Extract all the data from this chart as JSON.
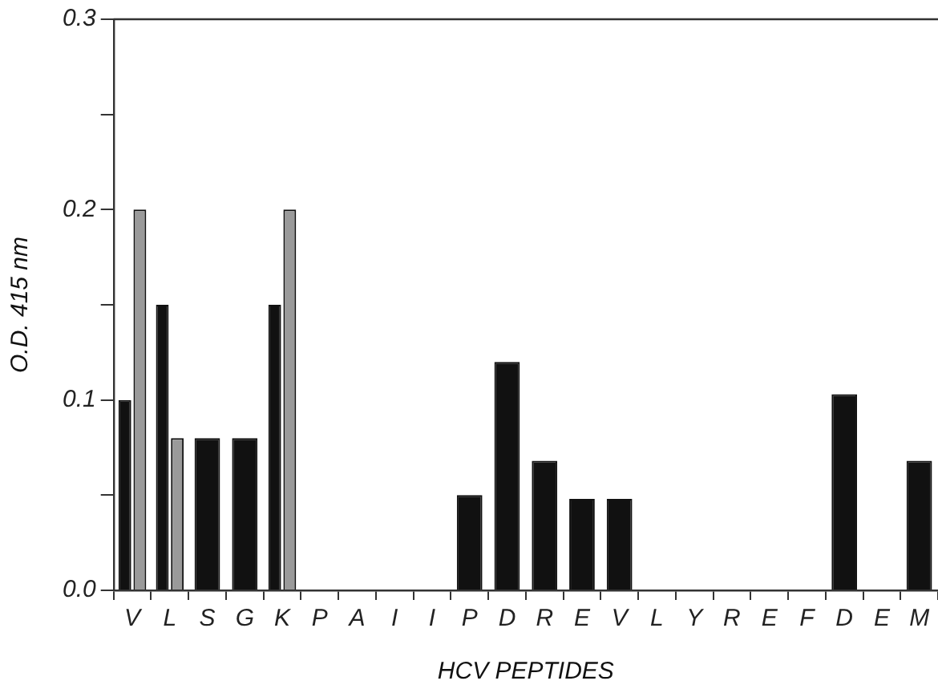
{
  "chart_data": {
    "type": "bar",
    "xlabel": "HCV PEPTIDES",
    "ylabel": "O.D. 415 nm",
    "categories": [
      "V",
      "L",
      "S",
      "G",
      "K",
      "P",
      "A",
      "I",
      "I",
      "P",
      "D",
      "R",
      "E",
      "V",
      "L",
      "Y",
      "R",
      "E",
      "F",
      "D",
      "E",
      "M"
    ],
    "series": [
      {
        "color": "#111111",
        "values": [
          0.1,
          0.15,
          0.08,
          0.08,
          0.15,
          null,
          null,
          null,
          null,
          0.05,
          0.12,
          0.068,
          0.048,
          0.048,
          null,
          null,
          null,
          null,
          null,
          0.103,
          null,
          0.068
        ]
      },
      {
        "color": "#9a9a9a",
        "values": [
          0.2,
          0.08,
          null,
          null,
          0.2,
          null,
          null,
          null,
          null,
          null,
          null,
          null,
          null,
          null,
          null,
          null,
          null,
          null,
          null,
          null,
          null,
          null
        ]
      }
    ],
    "ylim": [
      0,
      0.3
    ],
    "yticks": [
      {
        "value": 0,
        "label": "0.0"
      },
      {
        "value": 0.05,
        "label": null
      },
      {
        "value": 0.1,
        "label": "0.1"
      },
      {
        "value": 0.15,
        "label": null
      },
      {
        "value": 0.2,
        "label": "0.2"
      },
      {
        "value": 0.25,
        "label": null
      },
      {
        "value": 0.3,
        "label": "0.3"
      }
    ],
    "grid": false,
    "legend": false
  }
}
